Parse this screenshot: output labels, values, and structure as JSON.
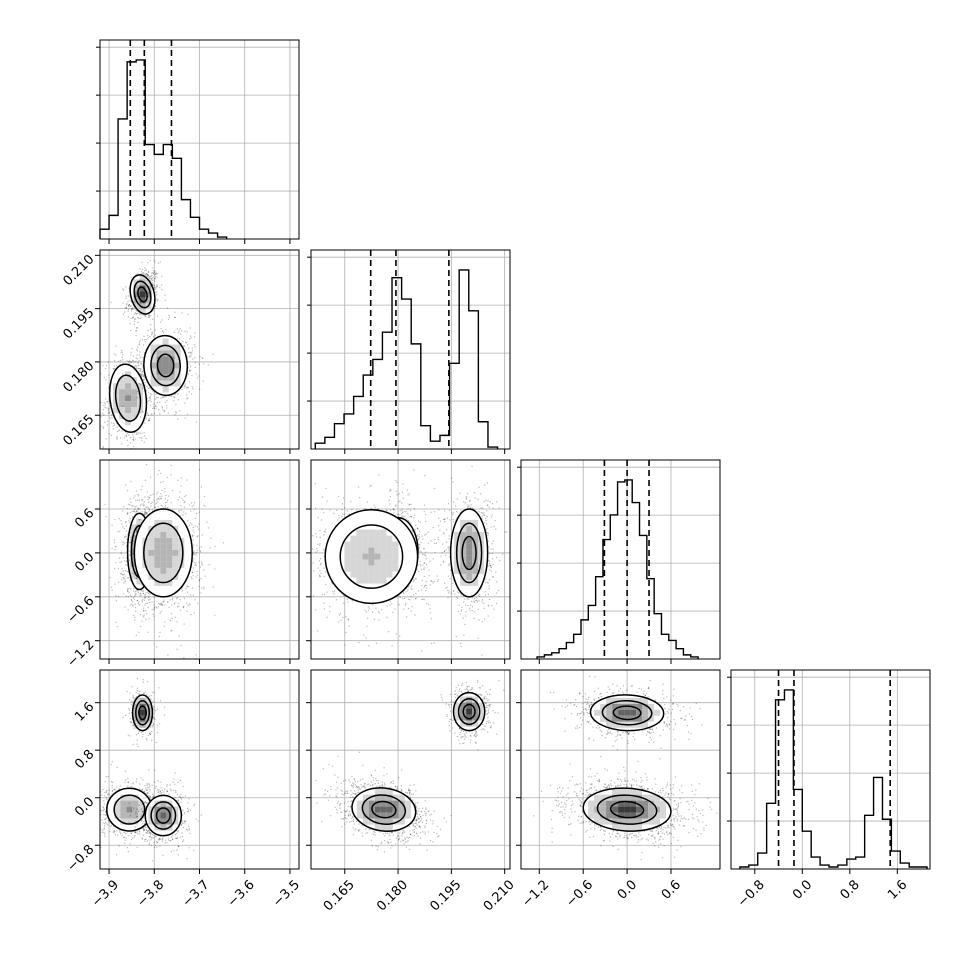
{
  "chart_data": {
    "type": "corner",
    "colors": {
      "frame": "#000000",
      "grid": "#b0b0b0",
      "quantile": "#000000",
      "contour_fill": "#ffffff"
    },
    "grid": true,
    "parameters": [
      {
        "range": [
          -3.92,
          -3.48
        ],
        "ticks": [
          -3.9,
          -3.8,
          -3.7,
          -3.6,
          -3.5
        ],
        "tick_labels": [
          "−3.9",
          "−3.8",
          "−3.7",
          "−3.6",
          "−3.5"
        ]
      },
      {
        "range": [
          0.1555,
          0.2115
        ],
        "ticks": [
          0.165,
          0.18,
          0.195,
          0.21
        ],
        "tick_labels": [
          "0.165",
          "0.180",
          "0.195",
          "0.210"
        ]
      },
      {
        "range": [
          -1.45,
          1.27
        ],
        "ticks": [
          -1.2,
          -0.6,
          0.0,
          0.6
        ],
        "tick_labels": [
          "−1.2",
          "−0.6",
          "0.0",
          "0.6"
        ]
      },
      {
        "range": [
          -1.2,
          2.15
        ],
        "ticks": [
          -0.8,
          0.0,
          0.8,
          1.6
        ],
        "tick_labels": [
          "−0.8",
          "0.0",
          "0.8",
          "1.6"
        ]
      }
    ],
    "diagonal": [
      {
        "param": 0,
        "bin_edges": [
          -3.92,
          -3.9,
          -3.88,
          -3.86,
          -3.84,
          -3.82,
          -3.8,
          -3.78,
          -3.76,
          -3.74,
          -3.72,
          -3.7,
          -3.68,
          -3.66,
          -3.64
        ],
        "heights": [
          0.05,
          0.12,
          0.61,
          0.9,
          0.91,
          0.48,
          0.43,
          0.48,
          0.41,
          0.2,
          0.11,
          0.05,
          0.03,
          0.01
        ],
        "quantiles": [
          -3.853,
          -3.822,
          -3.762
        ]
      },
      {
        "param": 1,
        "bin_edges": [
          0.1567,
          0.1594,
          0.1621,
          0.1648,
          0.1675,
          0.1702,
          0.1729,
          0.1756,
          0.1783,
          0.181,
          0.1837,
          0.1864,
          0.1891,
          0.1918,
          0.1945,
          0.1972,
          0.1999,
          0.2026,
          0.2053,
          0.208
        ],
        "heights": [
          0.03,
          0.06,
          0.13,
          0.18,
          0.27,
          0.38,
          0.46,
          0.6,
          0.88,
          0.77,
          0.54,
          0.12,
          0.04,
          0.07,
          0.44,
          0.92,
          0.71,
          0.14,
          0.01
        ],
        "quantiles": [
          0.1723,
          0.1794,
          0.1943
        ]
      },
      {
        "param": 2,
        "bin_edges": [
          -1.23,
          -1.13,
          -1.03,
          -0.93,
          -0.83,
          -0.73,
          -0.63,
          -0.53,
          -0.43,
          -0.33,
          -0.23,
          -0.13,
          -0.03,
          0.07,
          0.17,
          0.27,
          0.37,
          0.47,
          0.57,
          0.67,
          0.77,
          0.87,
          0.97
        ],
        "heights": [
          0.01,
          0.02,
          0.03,
          0.05,
          0.08,
          0.12,
          0.19,
          0.26,
          0.4,
          0.58,
          0.7,
          0.86,
          0.87,
          0.76,
          0.6,
          0.39,
          0.22,
          0.12,
          0.09,
          0.05,
          0.02,
          0.01
        ],
        "quantiles": [
          -0.31,
          0.0,
          0.3
        ]
      },
      {
        "param": 3,
        "bin_edges": [
          -1.05,
          -0.9,
          -0.75,
          -0.6,
          -0.45,
          -0.3,
          -0.15,
          0.0,
          0.15,
          0.3,
          0.45,
          0.6,
          0.75,
          0.9,
          1.05,
          1.2,
          1.35,
          1.5,
          1.65,
          1.8,
          1.95,
          2.1
        ],
        "heights": [
          0.01,
          0.02,
          0.08,
          0.33,
          0.85,
          0.9,
          0.4,
          0.19,
          0.06,
          0.02,
          0.01,
          0.02,
          0.05,
          0.06,
          0.27,
          0.46,
          0.25,
          0.09,
          0.03,
          0.01,
          0.01
        ],
        "quantiles": [
          -0.4,
          -0.14,
          1.48
        ]
      }
    ],
    "pairs": [
      {
        "x_param": 0,
        "y_param": 1,
        "clusters": [
          {
            "x": -3.826,
            "y": 0.199,
            "sx": 0.013,
            "sy": 0.0028,
            "rho": 0.25,
            "n": 500,
            "w": 1.0
          },
          {
            "x": -3.858,
            "y": 0.1698,
            "sx": 0.02,
            "sy": 0.0048,
            "rho": 0.1,
            "n": 700,
            "w": 0.6
          },
          {
            "x": -3.775,
            "y": 0.179,
            "sx": 0.024,
            "sy": 0.0042,
            "rho": 0.05,
            "n": 700,
            "w": 0.75
          }
        ]
      },
      {
        "x_param": 0,
        "y_param": 2,
        "clusters": [
          {
            "x": -3.833,
            "y": 0.02,
            "sx": 0.013,
            "sy": 0.26,
            "rho": 0.0,
            "n": 800,
            "w": 1.0
          },
          {
            "x": -3.78,
            "y": 0.0,
            "sx": 0.032,
            "sy": 0.3,
            "rho": 0.0,
            "n": 1100,
            "w": 0.55
          }
        ]
      },
      {
        "x_param": 1,
        "y_param": 2,
        "clusters": [
          {
            "x": 0.18,
            "y": 0.02,
            "sx": 0.0028,
            "sy": 0.23,
            "rho": 0.0,
            "n": 500,
            "w": 1.0
          },
          {
            "x": 0.1725,
            "y": -0.05,
            "sx": 0.0065,
            "sy": 0.32,
            "rho": 0.0,
            "n": 900,
            "w": 0.4
          },
          {
            "x": 0.2,
            "y": 0.0,
            "sx": 0.0026,
            "sy": 0.3,
            "rho": 0.0,
            "n": 700,
            "w": 0.7
          }
        ]
      },
      {
        "x_param": 0,
        "y_param": 3,
        "clusters": [
          {
            "x": -3.826,
            "y": 1.43,
            "sx": 0.011,
            "sy": 0.15,
            "rho": 0.0,
            "n": 400,
            "w": 1.0
          },
          {
            "x": -3.855,
            "y": -0.2,
            "sx": 0.025,
            "sy": 0.18,
            "rho": 0.0,
            "n": 700,
            "w": 0.6
          },
          {
            "x": -3.78,
            "y": -0.3,
            "sx": 0.02,
            "sy": 0.17,
            "rho": 0.0,
            "n": 700,
            "w": 0.9
          }
        ]
      },
      {
        "x_param": 1,
        "y_param": 3,
        "clusters": [
          {
            "x": 0.2,
            "y": 1.45,
            "sx": 0.0022,
            "sy": 0.16,
            "rho": 0.0,
            "n": 500,
            "w": 1.0
          },
          {
            "x": 0.176,
            "y": -0.2,
            "sx": 0.0045,
            "sy": 0.18,
            "rho": -0.35,
            "n": 1200,
            "w": 0.9
          }
        ]
      },
      {
        "x_param": 2,
        "y_param": 3,
        "clusters": [
          {
            "x": 0.0,
            "y": 1.43,
            "sx": 0.25,
            "sy": 0.15,
            "rho": -0.1,
            "n": 700,
            "w": 0.9
          },
          {
            "x": 0.0,
            "y": -0.2,
            "sx": 0.3,
            "sy": 0.18,
            "rho": -0.2,
            "n": 1400,
            "w": 1.0
          }
        ]
      }
    ]
  }
}
